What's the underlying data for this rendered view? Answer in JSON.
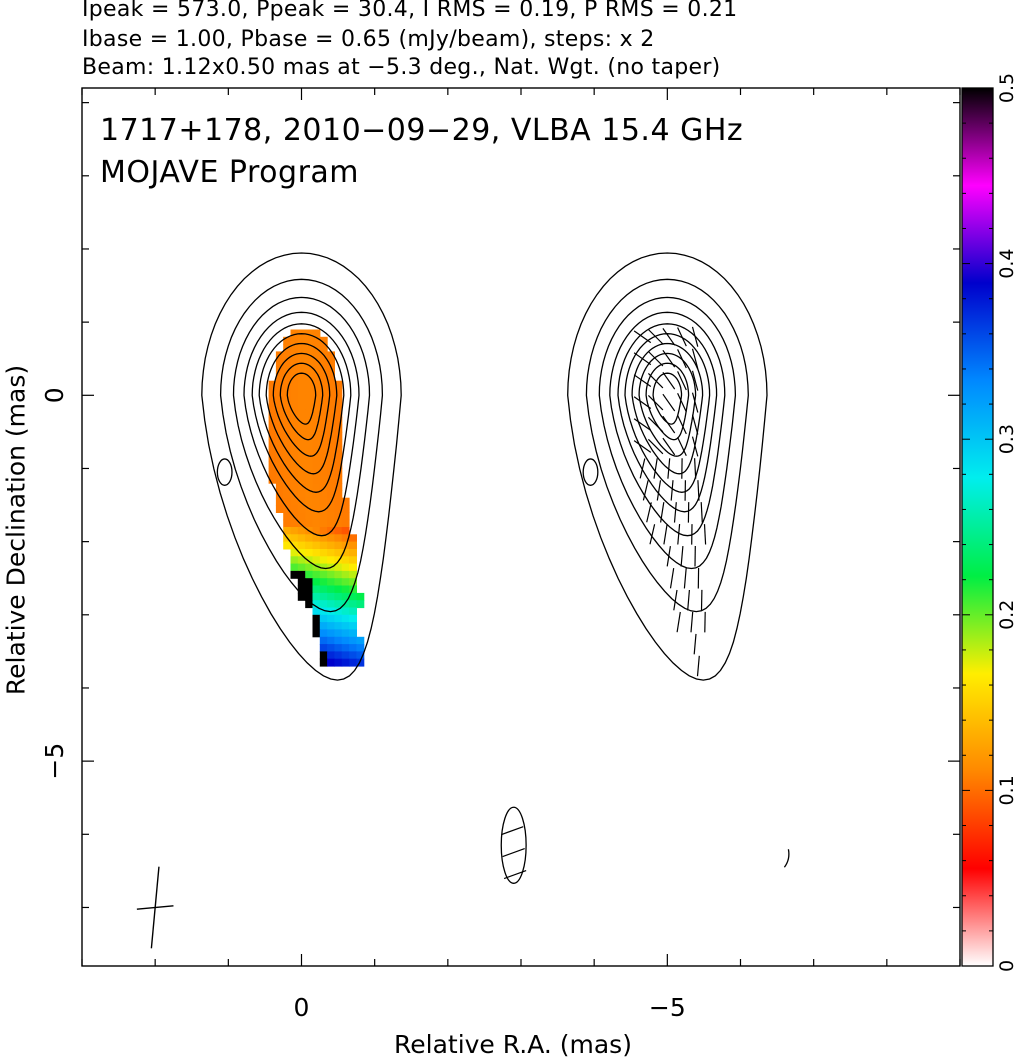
{
  "header": {
    "line1": "Ipeak = 573.0, Ppeak = 30.4, I RMS = 0.19, P RMS = 0.21",
    "line2": "Ibase = 1.00, Pbase = 0.65 (mJy/beam), steps: x 2",
    "line3": "Beam: 1.12x0.50 mas at −5.3 deg., Nat. Wgt. (no taper)"
  },
  "plot": {
    "title_line1": "1717+178, 2010−09−29, VLBA 15.4 GHz",
    "title_line2": "MOJAVE Program"
  },
  "chart_data": {
    "type": "heatmap",
    "xlabel": "Relative R.A. (mas)",
    "ylabel": "Relative Declination (mas)",
    "xlim": [
      3.0,
      -9.0
    ],
    "ylim": [
      -7.8,
      4.2
    ],
    "x_ticks": [
      {
        "value": 0,
        "label": "0"
      },
      {
        "value": -5,
        "label": "−5"
      }
    ],
    "y_ticks": [
      {
        "value": 0,
        "label": "0"
      },
      {
        "value": -5,
        "label": "−5"
      }
    ],
    "colorbar": {
      "range": [
        0,
        0.5
      ],
      "ticks": [
        {
          "value": 0,
          "label": "0"
        },
        {
          "value": 0.1,
          "label": "0.1"
        },
        {
          "value": 0.2,
          "label": "0.2"
        },
        {
          "value": 0.3,
          "label": "0.3"
        },
        {
          "value": 0.4,
          "label": "0.4"
        },
        {
          "value": 0.5,
          "label": "0.5"
        }
      ],
      "colors": [
        "#ffffff",
        "#ff0000",
        "#ff8800",
        "#ffee00",
        "#00ee44",
        "#00eeee",
        "#0088ff",
        "#0000cc",
        "#ff00ff",
        "#000000"
      ]
    },
    "panels": [
      {
        "name": "left",
        "ra_offset": 0.0,
        "content": "total intensity contours with fractional polarization color image"
      },
      {
        "name": "right",
        "ra_offset": -5.0,
        "content": "total intensity contours with EVPA ticks"
      }
    ],
    "components": [
      {
        "ra": 0.0,
        "dec": 0.0,
        "major_radius": 0.55,
        "minor_radius": 0.32,
        "note": "core peak"
      },
      {
        "ra": -0.35,
        "dec": -2.3,
        "note": "jet extension to the south"
      }
    ],
    "beam": {
      "major_mas": 1.12,
      "minor_mas": 0.5,
      "pa_deg": -5.3,
      "ra": 2.0,
      "dec": -7.0
    }
  }
}
